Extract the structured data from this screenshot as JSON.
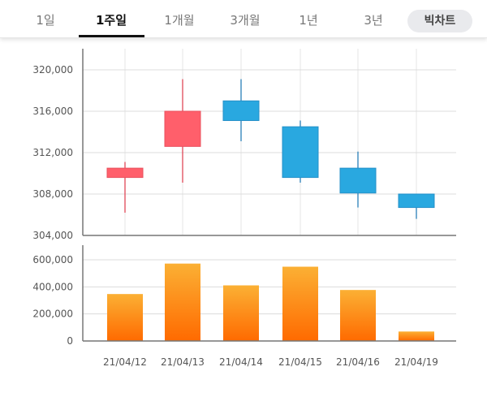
{
  "tabs": [
    {
      "label": "1일"
    },
    {
      "label": "1주일",
      "active": true
    },
    {
      "label": "1개월"
    },
    {
      "label": "3개월"
    },
    {
      "label": "1년"
    },
    {
      "label": "3년"
    }
  ],
  "big_chart_label": "빅차트",
  "colors": {
    "up": "#ff5f6b",
    "down": "#29a8e0",
    "volume_top": "#fbb034",
    "volume_bottom": "#ff6a00"
  },
  "chart_data": [
    {
      "type": "candlestick",
      "categories": [
        "21/04/12",
        "21/04/13",
        "21/04/14",
        "21/04/15",
        "21/04/16",
        "21/04/19"
      ],
      "open": [
        309600,
        312600,
        317000,
        314500,
        310500,
        308000
      ],
      "high": [
        311100,
        319100,
        319100,
        315100,
        312100,
        308000
      ],
      "low": [
        306200,
        309100,
        313100,
        309100,
        306700,
        305600
      ],
      "close": [
        310500,
        316000,
        315100,
        309600,
        308100,
        306700
      ],
      "ylim": [
        304000,
        320000
      ],
      "yticks": [
        "304,000",
        "308,000",
        "312,000",
        "316,000",
        "320,000"
      ],
      "grid": true
    },
    {
      "type": "bar",
      "categories": [
        "21/04/12",
        "21/04/13",
        "21/04/14",
        "21/04/15",
        "21/04/16",
        "21/04/19"
      ],
      "values": [
        347000,
        572000,
        411000,
        549000,
        377000,
        70000
      ],
      "ylim": [
        0,
        600000
      ],
      "yticks": [
        "0",
        "200,000",
        "400,000",
        "600,000"
      ],
      "grid": true
    }
  ]
}
